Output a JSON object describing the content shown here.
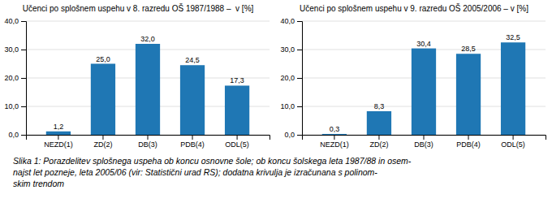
{
  "chart_data": [
    {
      "type": "bar",
      "title": "Učenci po splošnem uspehu v 8. razredu OŠ 1987/1988 –  v [%]",
      "categories": [
        "NEZD(1)",
        "ZD(2)",
        "DB(3)",
        "PDB(4)",
        "ODL(5)"
      ],
      "values": [
        1.2,
        25.0,
        32.0,
        24.5,
        17.3
      ],
      "value_labels": [
        "1,2",
        "25,0",
        "32,0",
        "24,5",
        "17,3"
      ],
      "data_labels": true,
      "ylim": [
        0,
        40
      ],
      "yticks": [
        {
          "value": 0.0,
          "label": "0,0"
        },
        {
          "value": 10.0,
          "label": "10,0"
        },
        {
          "value": 20.0,
          "label": "20,0"
        },
        {
          "value": 30.0,
          "label": "30,0"
        },
        {
          "value": 40.0,
          "label": "40,0"
        }
      ],
      "grid": true
    },
    {
      "type": "bar",
      "title": "Učenci po splošnem uspehu v 9. razredu OŠ 2005/2006 – v [%]",
      "categories": [
        "NEZD(1)",
        "ZD(2)",
        "DB(3)",
        "PDB(4)",
        "ODL(5)"
      ],
      "values": [
        0.3,
        8.3,
        30.4,
        28.5,
        32.5
      ],
      "value_labels": [
        "0,3",
        "8,3",
        "30,4",
        "28,5",
        "32,5"
      ],
      "data_labels": true,
      "ylim": [
        0,
        40
      ],
      "yticks": [
        {
          "value": 0.0,
          "label": "0,0"
        },
        {
          "value": 10.0,
          "label": "10,0"
        },
        {
          "value": 20.0,
          "label": "20,0"
        },
        {
          "value": 30.0,
          "label": "30,0"
        },
        {
          "value": 40.0,
          "label": "40,0"
        }
      ],
      "grid": true
    }
  ],
  "caption": [
    "Slika 1: Porazdelitev splošnega uspeha ob koncu osnovne šole; ob koncu šolskega leta 1987/88 in osem-",
    "najst let pozneje, leta 2005/06 (vir: Statistični urad RS); dodatna krivulja je izračunana s polinom-",
    "skim trendom"
  ]
}
